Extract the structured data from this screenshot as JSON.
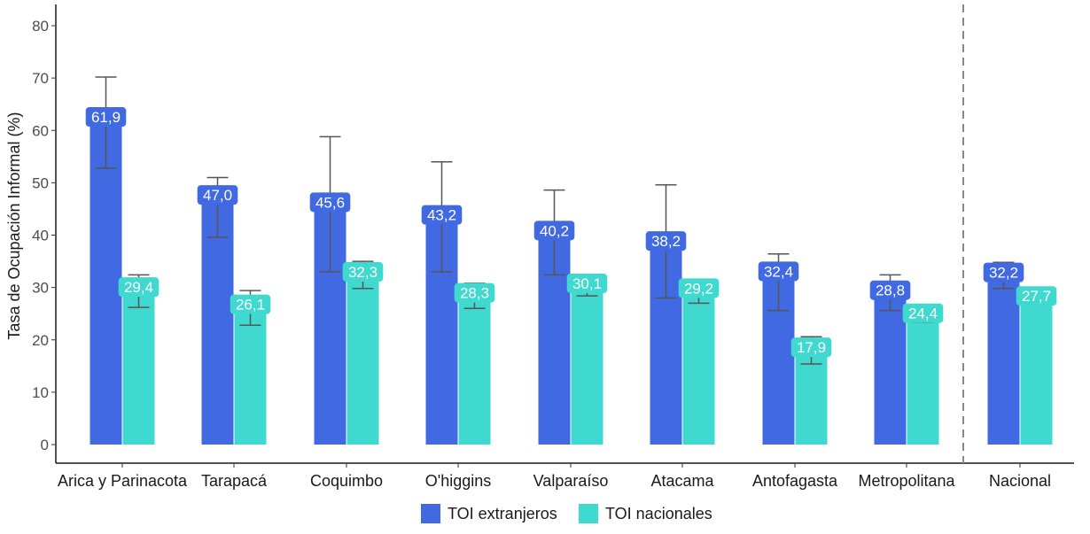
{
  "chart_data": {
    "type": "bar",
    "title": "",
    "xlabel": "",
    "ylabel": "Tasa de Ocupación Informal (%)",
    "ylim": [
      0,
      80
    ],
    "yticks": [
      0,
      10,
      20,
      30,
      40,
      50,
      60,
      70,
      80
    ],
    "grid": false,
    "legend_position": "bottom",
    "categories": [
      "Arica y Parinacota",
      "Tarapacá",
      "Coquimbo",
      "O'higgins",
      "Valparaíso",
      "Atacama",
      "Antofagasta",
      "Metropolitana",
      "Nacional"
    ],
    "separator_before_category": "Nacional",
    "series": [
      {
        "name": "TOI extranjeros",
        "color": "#4169E1",
        "values": [
          61.9,
          47.0,
          45.6,
          43.2,
          40.2,
          38.2,
          32.4,
          28.8,
          32.2
        ],
        "labels": [
          "61,9",
          "47,0",
          "45,6",
          "43,2",
          "40,2",
          "38,2",
          "32,4",
          "28,8",
          "32,2"
        ],
        "error_low": [
          52.8,
          39.6,
          33.0,
          33.0,
          32.4,
          28.0,
          25.6,
          25.6,
          29.8
        ],
        "error_high": [
          70.2,
          51.0,
          58.8,
          54.0,
          48.6,
          49.6,
          36.4,
          32.4,
          34.8
        ]
      },
      {
        "name": "TOI nacionales",
        "color": "#40D9D0",
        "values": [
          29.4,
          26.1,
          32.3,
          28.3,
          30.1,
          29.2,
          17.9,
          24.4,
          27.7
        ],
        "labels": [
          "29,4",
          "26,1",
          "32,3",
          "28,3",
          "30,1",
          "29,2",
          "17,9",
          "24,4",
          "27,7"
        ],
        "error_low": [
          26.2,
          22.8,
          29.8,
          26.0,
          28.4,
          27.0,
          15.4,
          23.3,
          27.1
        ],
        "error_high": [
          32.4,
          29.4,
          35.0,
          30.8,
          31.8,
          31.4,
          20.6,
          25.6,
          28.4
        ]
      }
    ]
  }
}
